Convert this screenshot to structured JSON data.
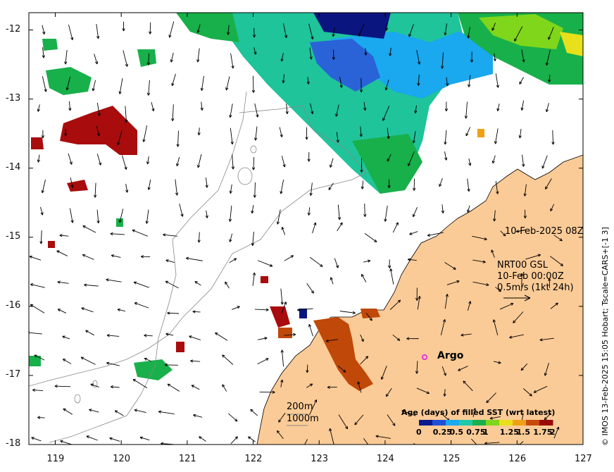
{
  "map": {
    "x_ticks": [
      "119",
      "120",
      "121",
      "122",
      "123",
      "124",
      "125",
      "126",
      "127"
    ],
    "y_ticks": [
      "-12",
      "-13",
      "-14",
      "-15",
      "-16",
      "-17",
      "-18"
    ],
    "lon_range": [
      118.6,
      127.0
    ],
    "lat_range": [
      -18.0,
      -11.75
    ]
  },
  "annotations": {
    "date_label": "10-Feb-2025 08Z",
    "current_source": "NRT00 GSL",
    "current_time": "10-Feb 00:00Z",
    "current_scale": "0.5m/s (1kt 24h)",
    "argo_label": "Argo",
    "contour_200": "200m",
    "contour_1000": "1000m"
  },
  "colorbar": {
    "title": "Age (days) of filled SST (wrt latest)",
    "ticks": [
      "0",
      "0.25",
      "0.5",
      "0.75",
      "1",
      "1.25",
      "1.5",
      "1.75",
      "2"
    ],
    "colors": [
      "#0b1a8c",
      "#1f4fd6",
      "#19a9ee",
      "#20c9a8",
      "#18b04a",
      "#7fd61a",
      "#e8e01a",
      "#f0a015",
      "#c84a0a",
      "#9a0808"
    ]
  },
  "credit": "© IMOS 13-Feb-2025 15:05 Hobart; Tscale=CARS+[-1 3]",
  "colors": {
    "land": "#fbcb97",
    "ocean": "#ffffff",
    "dark_red": "#a80c0c",
    "orange_brown": "#c04808",
    "green": "#18b04a",
    "teal": "#1fc49a",
    "light_blue": "#1aa8ee",
    "mid_blue": "#2a62d8",
    "navy": "#0b1580",
    "lime": "#7fd61a",
    "yellow": "#e8e01a",
    "magenta": "#e020e0"
  }
}
